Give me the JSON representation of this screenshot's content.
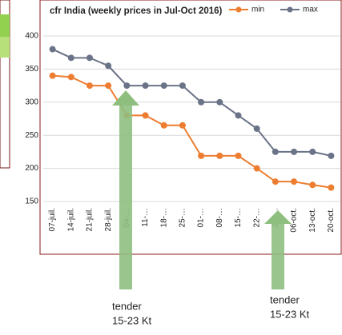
{
  "chart_data": {
    "type": "line",
    "title": "cfr India (weekly prices in Jul-Oct 2016)",
    "categories": [
      "07-juil.",
      "14-juil.",
      "21-juil.",
      "28-juil.",
      "04-…",
      "11-…",
      "18-…",
      "25-…",
      "01-…",
      "08-…",
      "15-…",
      "22-…",
      "29-…",
      "06-oct.",
      "13-oct.",
      "20-oct."
    ],
    "series": [
      {
        "name": "min",
        "color": "#ed7d31",
        "values": [
          340,
          338,
          325,
          325,
          280,
          280,
          265,
          265,
          219,
          219,
          219,
          200,
          180,
          180,
          175,
          171
        ]
      },
      {
        "name": "max",
        "color": "#6b7388",
        "values": [
          380,
          367,
          367,
          355,
          325,
          325,
          325,
          325,
          300,
          300,
          280,
          260,
          225,
          225,
          225,
          219
        ]
      }
    ],
    "ylim": [
      150,
      400
    ],
    "yticks": [
      150,
      200,
      250,
      300,
      350,
      400
    ],
    "grid": true,
    "legend": "top-right",
    "annotations": [
      "tender",
      "15-23 Kt",
      "tender",
      "15-23 Kt"
    ]
  }
}
